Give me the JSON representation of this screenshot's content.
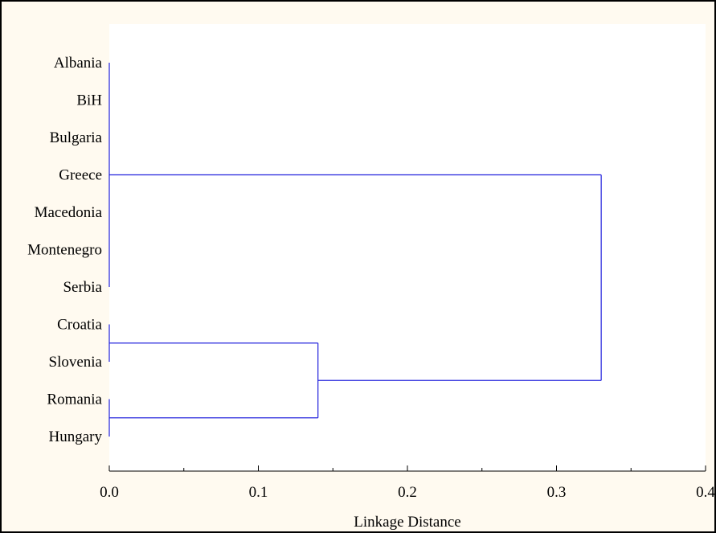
{
  "chart_data": {
    "type": "dendrogram",
    "orientation": "horizontal",
    "title": "",
    "xlabel": "Linkage Distance",
    "ylabel": "",
    "xlim": [
      0.0,
      0.4
    ],
    "x_ticks": [
      "0.0",
      "0.1",
      "0.2",
      "0.3",
      "0.4"
    ],
    "leaves": [
      "Albania",
      "BiH",
      "Bulgaria",
      "Greece",
      "Macedonia",
      "Montenegro",
      "Serbia",
      "Croatia",
      "Slovenia",
      "Romania",
      "Hungary"
    ],
    "merges": [
      {
        "id": "A",
        "members": [
          "Albania",
          "BiH",
          "Bulgaria",
          "Greece",
          "Macedonia",
          "Montenegro",
          "Serbia"
        ],
        "distance": 0.0
      },
      {
        "id": "B",
        "members": [
          "Croatia",
          "Slovenia"
        ],
        "distance": 0.0
      },
      {
        "id": "C",
        "members": [
          "Romania",
          "Hungary"
        ],
        "distance": 0.0
      },
      {
        "id": "D",
        "members": [
          "B",
          "C"
        ],
        "distance": 0.14
      },
      {
        "id": "E",
        "members": [
          "A",
          "D"
        ],
        "distance": 0.33
      }
    ],
    "line_color": "#2222dd",
    "grid": false
  }
}
